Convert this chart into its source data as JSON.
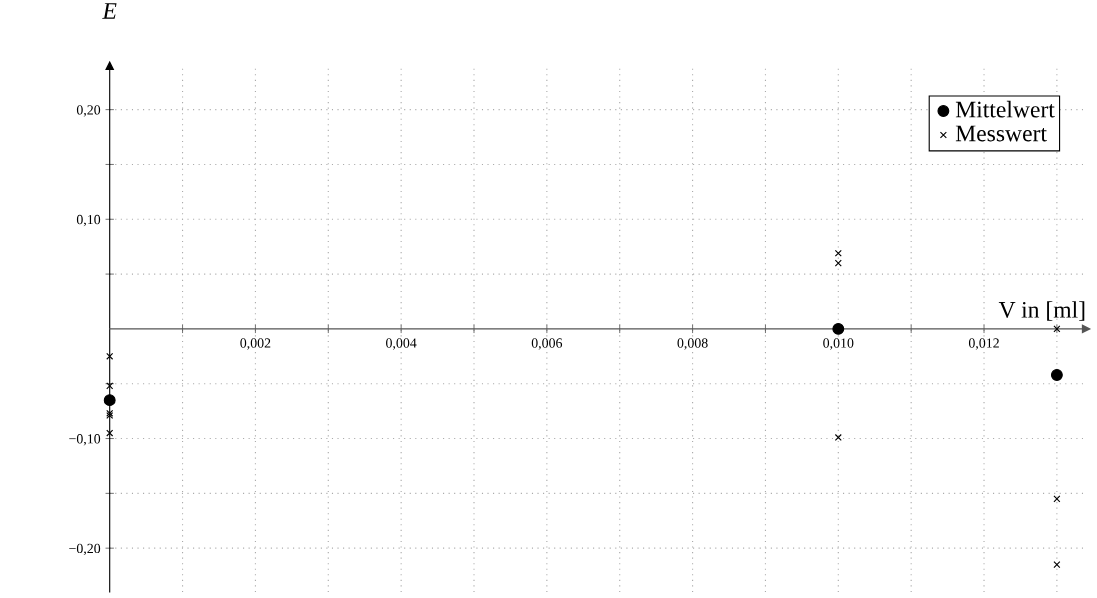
{
  "chart_data": {
    "type": "scatter",
    "xlabel": "V in [ml]",
    "ylabel": "E",
    "xlim": [
      0,
      0.0134
    ],
    "ylim": [
      -0.24,
      0.24
    ],
    "xticks": [
      {
        "value": 0.001,
        "label": null
      },
      {
        "value": 0.002,
        "label": "0,002"
      },
      {
        "value": 0.003,
        "label": null
      },
      {
        "value": 0.004,
        "label": "0,004"
      },
      {
        "value": 0.005,
        "label": null
      },
      {
        "value": 0.006,
        "label": "0,006"
      },
      {
        "value": 0.007,
        "label": null
      },
      {
        "value": 0.008,
        "label": "0,008"
      },
      {
        "value": 0.009,
        "label": null
      },
      {
        "value": 0.01,
        "label": "0,010"
      },
      {
        "value": 0.011,
        "label": null
      },
      {
        "value": 0.012,
        "label": "0,012"
      },
      {
        "value": 0.013,
        "label": null
      }
    ],
    "yticks": [
      {
        "value": -0.2,
        "label": "−0,20"
      },
      {
        "value": -0.15,
        "label": null
      },
      {
        "value": -0.1,
        "label": "−0,10"
      },
      {
        "value": -0.05,
        "label": null
      },
      {
        "value": 0.05,
        "label": null
      },
      {
        "value": 0.1,
        "label": "0,10"
      },
      {
        "value": 0.15,
        "label": null
      },
      {
        "value": 0.2,
        "label": "0,20"
      }
    ],
    "grid": true,
    "legend": "top right",
    "series": [
      {
        "name": "Mittelwert",
        "color": "#000000",
        "marker": "circle",
        "x": [
          0,
          0.01,
          0.013
        ],
        "values": [
          -0.065,
          0,
          -0.042
        ]
      },
      {
        "name": "Messwert",
        "color": "#000000",
        "marker": "cross",
        "x": [
          0,
          0,
          0,
          0,
          0,
          0.01,
          0.01,
          0.01,
          0.013,
          0.013,
          0.013
        ],
        "values": [
          -0.025,
          -0.052,
          -0.077,
          -0.079,
          -0.095,
          0.069,
          0.06,
          -0.099,
          0,
          -0.155,
          -0.215
        ]
      }
    ]
  }
}
